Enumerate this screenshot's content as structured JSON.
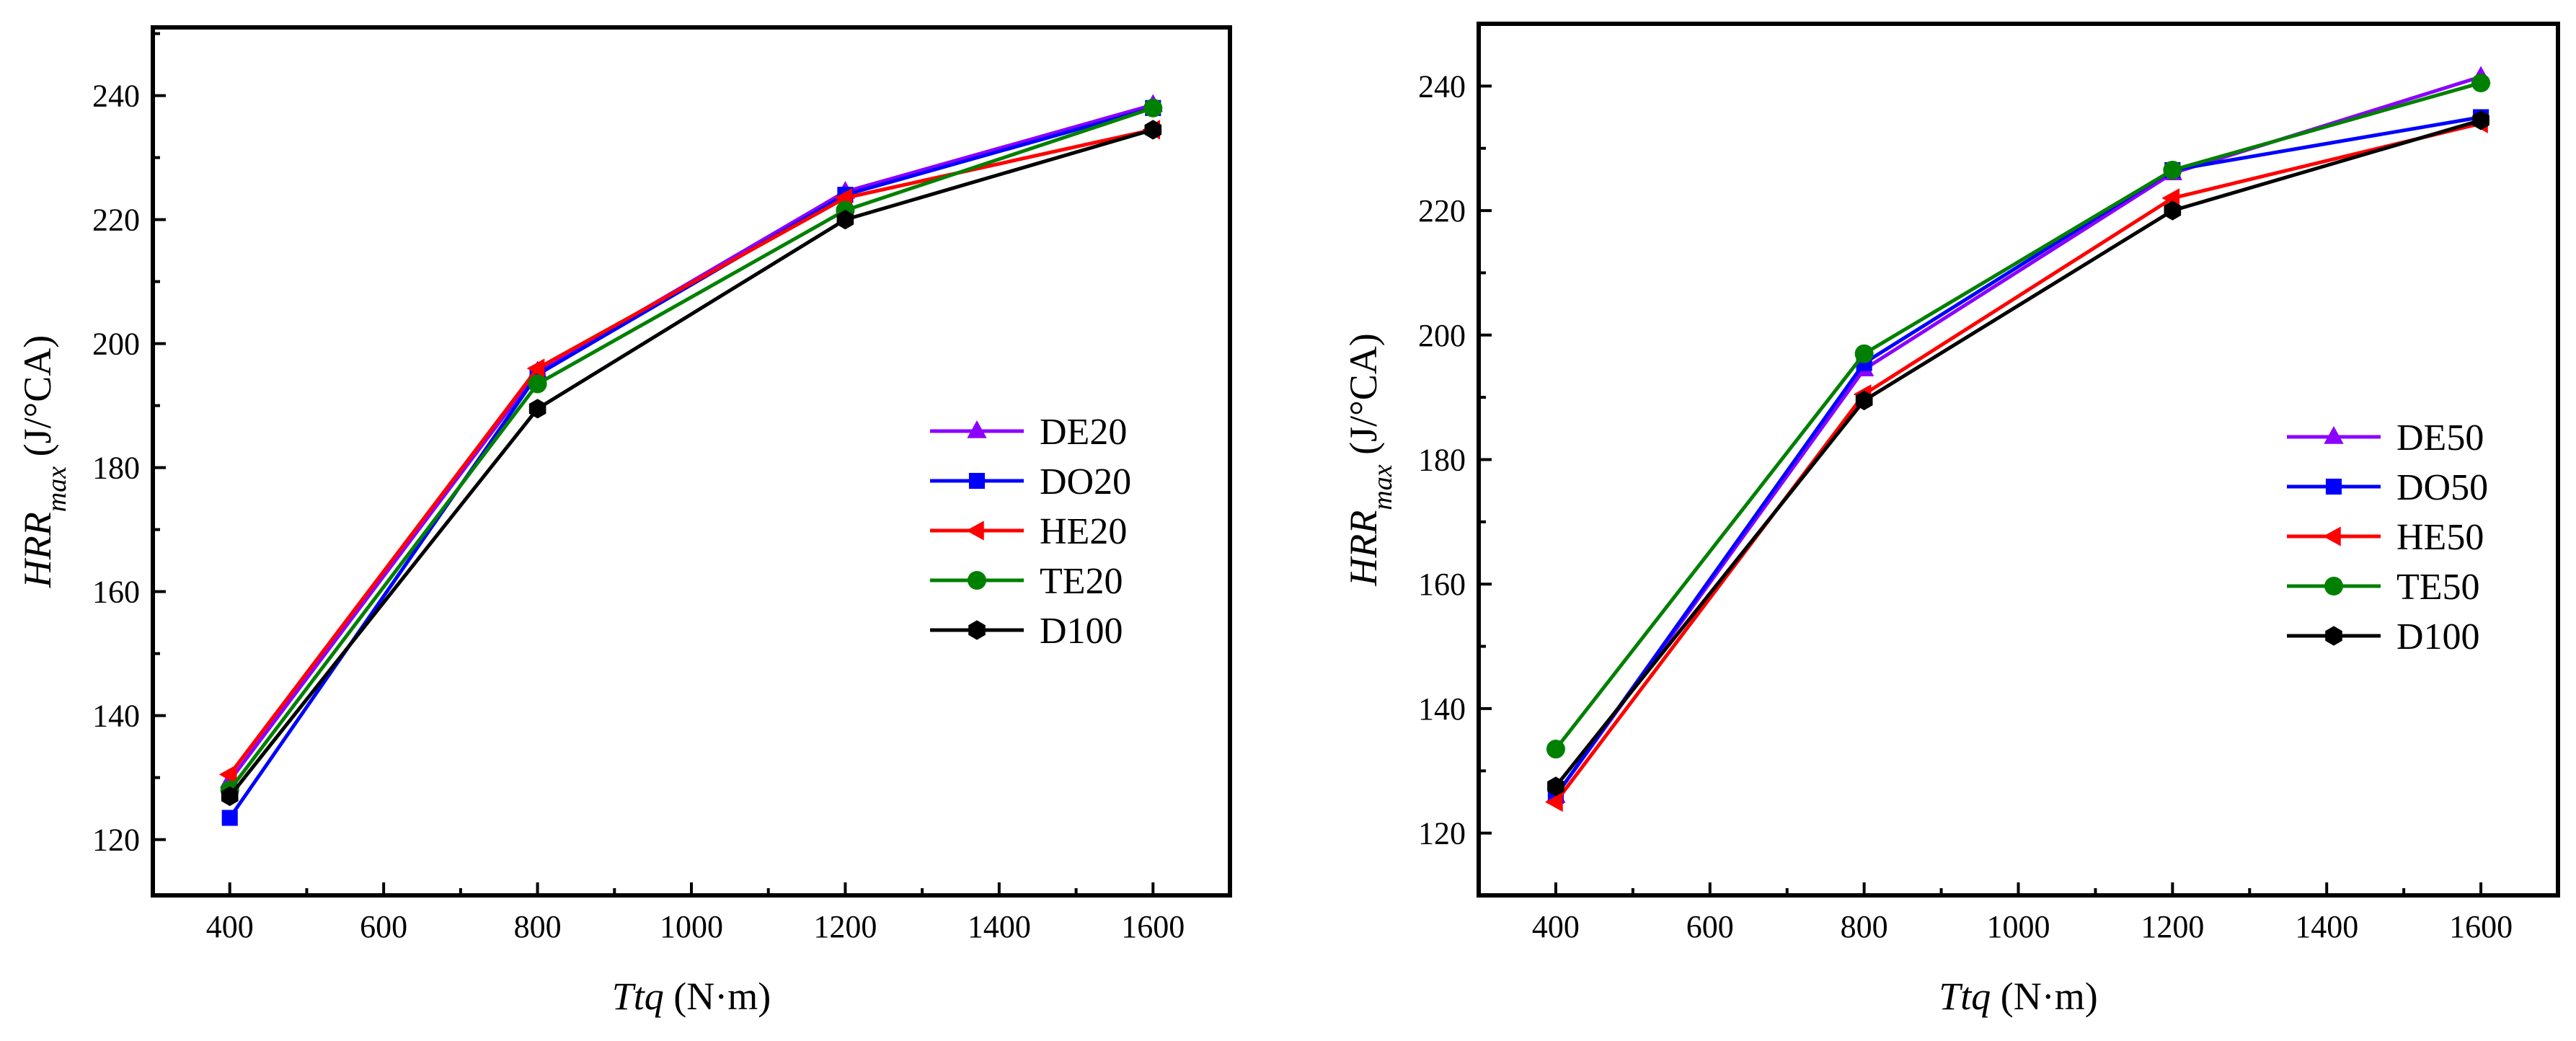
{
  "chart_data": [
    {
      "type": "line",
      "title": "",
      "xlabel": {
        "var": "Ttq",
        "unit": " (N·m)"
      },
      "ylabel": {
        "var": "HRR",
        "sub": "max",
        "unit": " (J/°CA)"
      },
      "x": [
        400,
        800,
        1200,
        1600
      ],
      "xlim": [
        300,
        1700
      ],
      "ylim": [
        111,
        251
      ],
      "xticks": [
        400,
        600,
        800,
        1000,
        1200,
        1400,
        1600
      ],
      "yticks": [
        120,
        140,
        160,
        180,
        200,
        220,
        240
      ],
      "legend_position": "center-right",
      "series": [
        {
          "name": "DE20",
          "color": "#8B00FF",
          "marker": "triangle-up",
          "values": [
            129.5,
            195.5,
            224.5,
            238.5
          ]
        },
        {
          "name": "DO20",
          "color": "#0000FF",
          "marker": "square",
          "values": [
            123.5,
            195.0,
            224.0,
            238.0
          ]
        },
        {
          "name": "HE20",
          "color": "#FF0000",
          "marker": "triangle-left",
          "values": [
            130.5,
            196.0,
            223.5,
            234.5
          ]
        },
        {
          "name": "TE20",
          "color": "#008000",
          "marker": "circle",
          "values": [
            128.0,
            193.5,
            221.5,
            238.0
          ]
        },
        {
          "name": "D100",
          "color": "#000000",
          "marker": "hexagon",
          "values": [
            127.0,
            189.5,
            220.0,
            234.5
          ]
        }
      ]
    },
    {
      "type": "line",
      "title": "",
      "xlabel": {
        "var": "Ttq",
        "unit": " (N·m)"
      },
      "ylabel": {
        "var": "HRR",
        "sub": "max",
        "unit": " (J/°CA)"
      },
      "x": [
        400,
        800,
        1200,
        1600
      ],
      "xlim": [
        300,
        1700
      ],
      "ylim": [
        110,
        250
      ],
      "xticks": [
        400,
        600,
        800,
        1000,
        1200,
        1400,
        1600
      ],
      "yticks": [
        120,
        140,
        160,
        180,
        200,
        220,
        240
      ],
      "legend_position": "center-right",
      "series": [
        {
          "name": "DE50",
          "color": "#8B00FF",
          "marker": "triangle-up",
          "values": [
            126.0,
            194.5,
            226.0,
            241.5
          ]
        },
        {
          "name": "DO50",
          "color": "#0000FF",
          "marker": "square",
          "values": [
            126.0,
            195.5,
            226.5,
            235.0
          ]
        },
        {
          "name": "HE50",
          "color": "#FF0000",
          "marker": "triangle-left",
          "values": [
            125.0,
            190.5,
            222.0,
            234.0
          ]
        },
        {
          "name": "TE50",
          "color": "#008000",
          "marker": "circle",
          "values": [
            133.5,
            197.0,
            226.5,
            240.5
          ]
        },
        {
          "name": "D100",
          "color": "#000000",
          "marker": "hexagon",
          "values": [
            127.5,
            189.5,
            220.0,
            234.5
          ]
        }
      ]
    }
  ]
}
